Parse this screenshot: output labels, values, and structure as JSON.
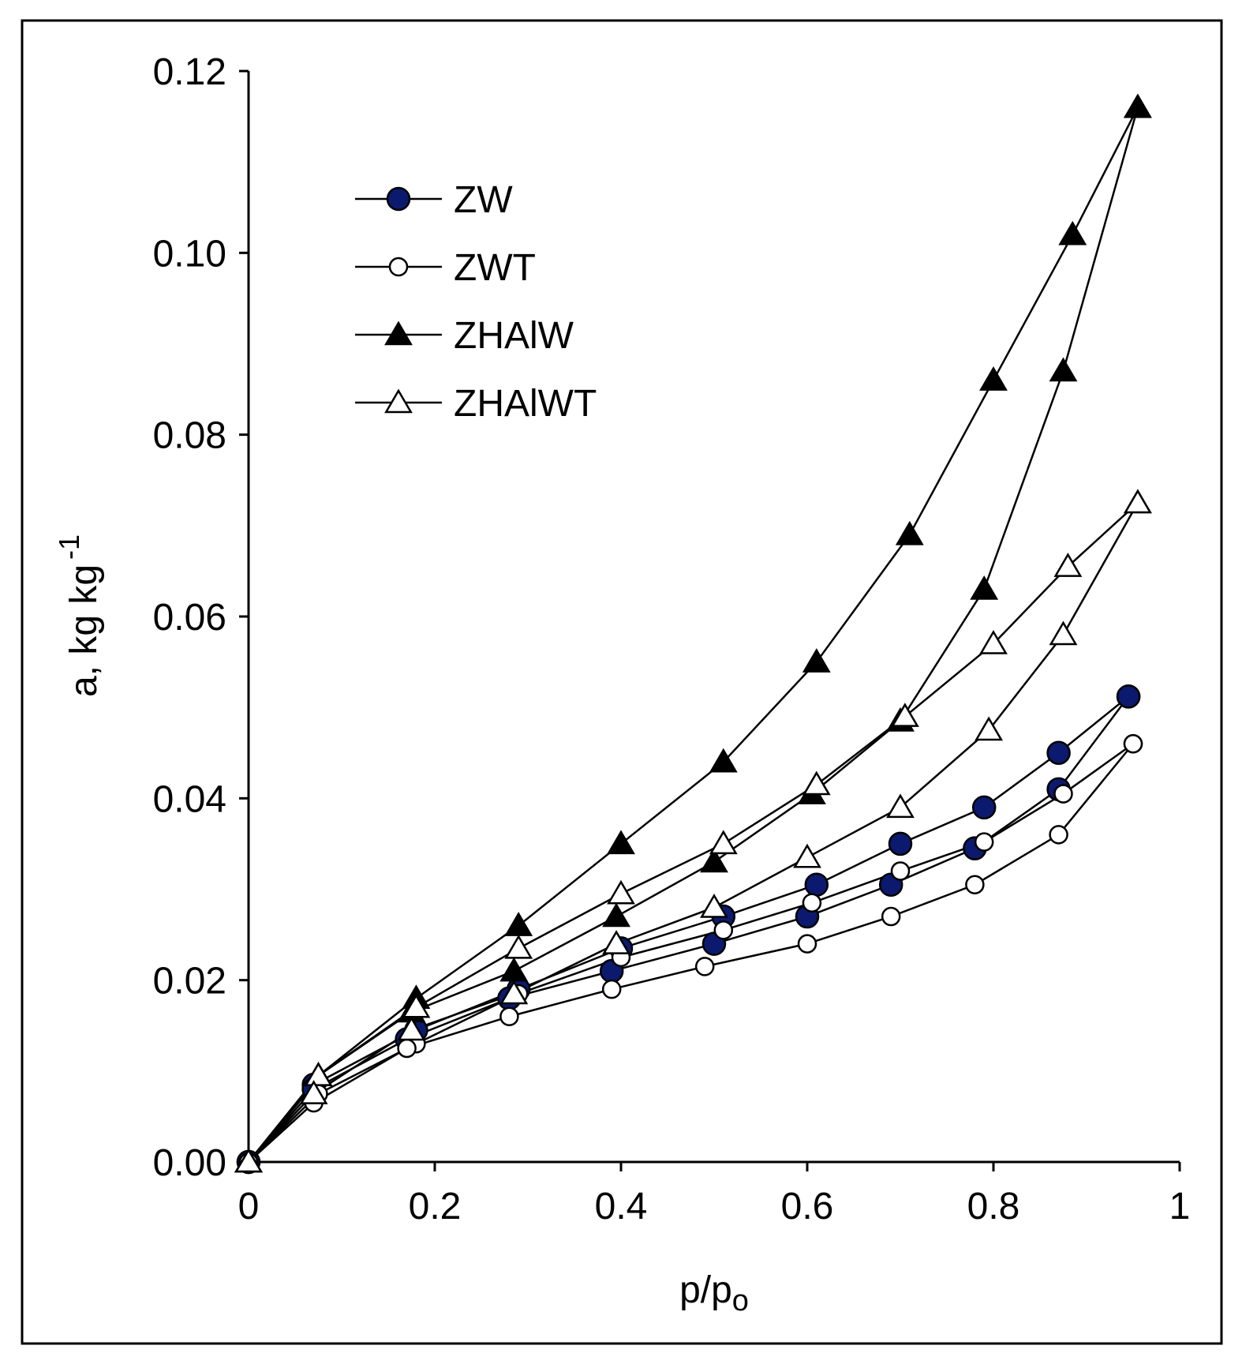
{
  "chart_data": {
    "type": "line",
    "title": "",
    "xlabel": "p/p",
    "xlabel_sub": "o",
    "ylabel": "a,  kg kg",
    "ylabel_sup": "-1",
    "xlim": [
      0,
      1
    ],
    "ylim": [
      0,
      0.12
    ],
    "xticks": [
      0,
      0.2,
      0.4,
      0.6,
      0.8,
      1
    ],
    "xtick_labels": [
      "0",
      "0.2",
      "0.4",
      "0.6",
      "0.8",
      "1"
    ],
    "yticks": [
      0,
      0.02,
      0.04,
      0.06,
      0.08,
      0.1,
      0.12
    ],
    "ytick_labels": [
      "0.00",
      "0.02",
      "0.04",
      "0.06",
      "0.08",
      "0.10",
      "0.12"
    ],
    "grid": false,
    "legend_position": "top-left",
    "series": [
      {
        "name": "ZW",
        "marker": "circle",
        "fill": "#0b1a6e",
        "branches": [
          {
            "x": [
              0,
              0.07,
              0.18,
              0.29,
              0.4,
              0.51,
              0.61,
              0.7,
              0.79,
              0.87,
              0.945
            ],
            "y": [
              0,
              0.0085,
              0.0145,
              0.019,
              0.0235,
              0.027,
              0.0305,
              0.035,
              0.039,
              0.045,
              0.0512
            ]
          },
          {
            "x": [
              0,
              0.07,
              0.17,
              0.28,
              0.39,
              0.5,
              0.6,
              0.69,
              0.78,
              0.87,
              0.945
            ],
            "y": [
              0,
              0.008,
              0.0135,
              0.018,
              0.021,
              0.024,
              0.027,
              0.0305,
              0.0345,
              0.041,
              0.0512
            ]
          }
        ]
      },
      {
        "name": "ZWT",
        "marker": "circle",
        "fill": "#ffffff",
        "branches": [
          {
            "x": [
              0,
              0.075,
              0.18,
              0.29,
              0.4,
              0.51,
              0.605,
              0.7,
              0.79,
              0.875,
              0.95
            ],
            "y": [
              0,
              0.0075,
              0.013,
              0.0185,
              0.0225,
              0.0255,
              0.0285,
              0.032,
              0.0352,
              0.0405,
              0.046
            ]
          },
          {
            "x": [
              0,
              0.07,
              0.17,
              0.28,
              0.39,
              0.49,
              0.6,
              0.69,
              0.78,
              0.87,
              0.95
            ],
            "y": [
              0,
              0.0065,
              0.0125,
              0.016,
              0.019,
              0.0215,
              0.024,
              0.027,
              0.0305,
              0.036,
              0.046
            ]
          }
        ]
      },
      {
        "name": "ZHAlW",
        "marker": "triangle",
        "fill": "#000000",
        "branches": [
          {
            "x": [
              0,
              0.075,
              0.18,
              0.29,
              0.4,
              0.51,
              0.61,
              0.71,
              0.8,
              0.885,
              0.955
            ],
            "y": [
              0,
              0.0095,
              0.018,
              0.026,
              0.035,
              0.044,
              0.055,
              0.069,
              0.086,
              0.102,
              0.116
            ]
          },
          {
            "x": [
              0,
              0.075,
              0.175,
              0.285,
              0.395,
              0.5,
              0.605,
              0.7,
              0.79,
              0.875,
              0.955
            ],
            "y": [
              0,
              0.0095,
              0.0165,
              0.021,
              0.027,
              0.033,
              0.0405,
              0.0485,
              0.063,
              0.087,
              0.116
            ]
          }
        ]
      },
      {
        "name": "ZHAlWT",
        "marker": "triangle",
        "fill": "#ffffff",
        "branches": [
          {
            "x": [
              0,
              0.075,
              0.18,
              0.29,
              0.4,
              0.51,
              0.61,
              0.705,
              0.8,
              0.88,
              0.955
            ],
            "y": [
              0,
              0.0095,
              0.017,
              0.0235,
              0.0295,
              0.035,
              0.0415,
              0.049,
              0.057,
              0.0655,
              0.0725
            ]
          },
          {
            "x": [
              0,
              0.07,
              0.175,
              0.285,
              0.395,
              0.5,
              0.6,
              0.7,
              0.795,
              0.875,
              0.955
            ],
            "y": [
              0,
              0.0075,
              0.0145,
              0.0185,
              0.024,
              0.028,
              0.0335,
              0.039,
              0.0475,
              0.058,
              0.0725
            ]
          }
        ]
      }
    ]
  }
}
